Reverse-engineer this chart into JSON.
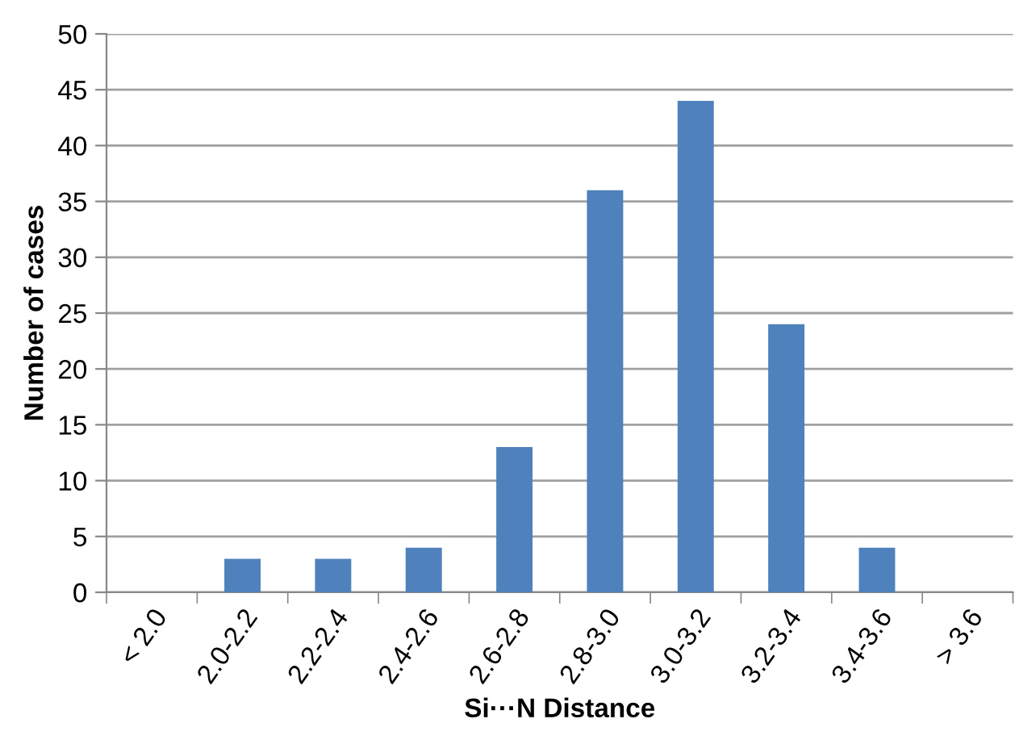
{
  "chart_data": {
    "type": "bar",
    "xlabel": "Si···N Distance",
    "ylabel": "Number of cases",
    "categories": [
      "< 2.0",
      "2.0-2.2",
      "2.2-2.4",
      "2.4-2.6",
      "2.6-2.8",
      "2.8-3.0",
      "3.0-3.2",
      "3.2-3.4",
      "3.4-3.6",
      "> 3.6"
    ],
    "values": [
      0,
      3,
      3,
      4,
      13,
      36,
      44,
      24,
      4,
      0
    ],
    "color": "#4f81bd",
    "ylim": [
      0,
      50
    ],
    "yticks": [
      0,
      5,
      10,
      15,
      20,
      25,
      30,
      35,
      40,
      45,
      50
    ],
    "grid": "y",
    "legend": false
  }
}
